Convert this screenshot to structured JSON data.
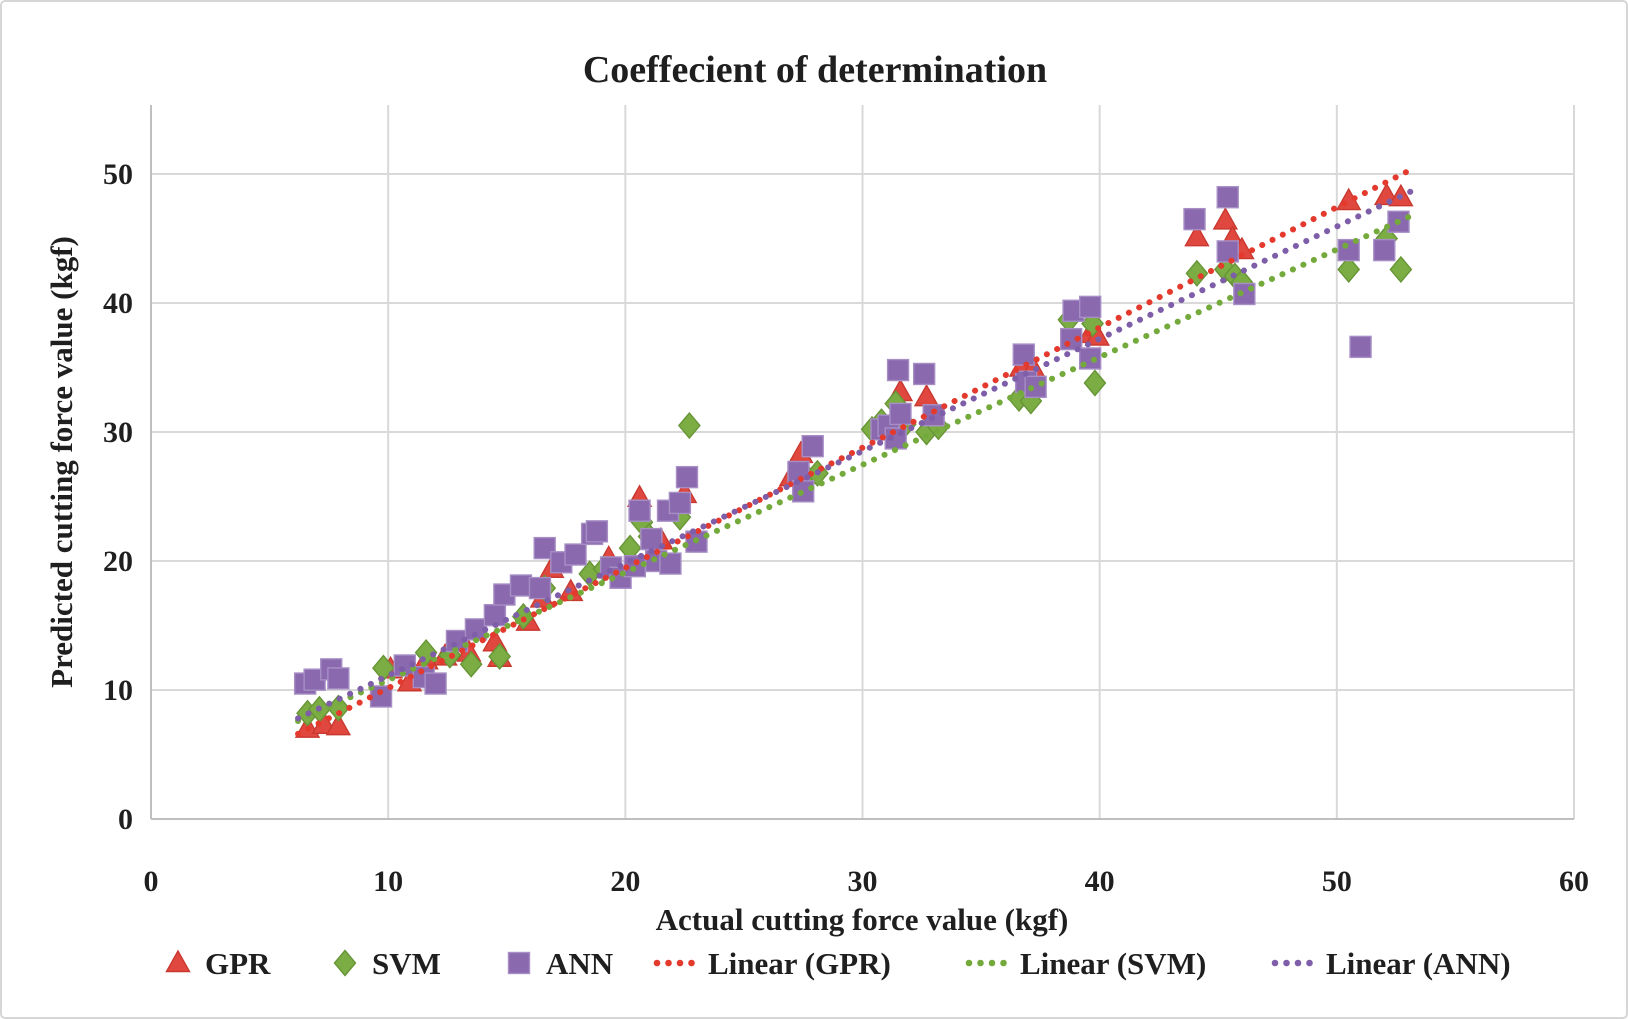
{
  "figure": {
    "background": "#ffffff",
    "border_color": "#d6d6d6"
  },
  "chart_data": {
    "type": "scatter",
    "title": "Coeffecient of determination",
    "xlabel": "Actual cutting force value (kgf)",
    "ylabel": "Predicted cutting force value (kgf)",
    "xlim": [
      0,
      60
    ],
    "ylim": [
      0,
      55
    ],
    "x_ticks": [
      0,
      10,
      20,
      30,
      40,
      50,
      60
    ],
    "y_ticks": [
      0,
      10,
      20,
      30,
      40,
      50
    ],
    "grid": true,
    "legend_position": "bottom",
    "colors": {
      "grid": "#d9d9d9",
      "axis": "#bfbfbf",
      "text": "#1f1f1f"
    },
    "series": [
      {
        "name": "GPR",
        "marker": "triangle",
        "color": "#e0483f",
        "stroke": "#c9382f",
        "points": [
          [
            6.6,
            7.0
          ],
          [
            7.3,
            7.3
          ],
          [
            7.9,
            7.2
          ],
          [
            10.1,
            11.6
          ],
          [
            10.9,
            10.6
          ],
          [
            11.6,
            12.3
          ],
          [
            12.4,
            12.6
          ],
          [
            13.4,
            12.9
          ],
          [
            14.5,
            13.7
          ],
          [
            14.7,
            12.5
          ],
          [
            15.9,
            15.3
          ],
          [
            16.5,
            17.1
          ],
          [
            16.9,
            19.4
          ],
          [
            17.7,
            17.6
          ],
          [
            19.3,
            20.2
          ],
          [
            20.6,
            24.9
          ],
          [
            21.5,
            21.6
          ],
          [
            22.5,
            25.2
          ],
          [
            27.0,
            26.5
          ],
          [
            27.4,
            28.3
          ],
          [
            30.9,
            30.6
          ],
          [
            31.6,
            33.1
          ],
          [
            32.7,
            32.7
          ],
          [
            36.7,
            35.0
          ],
          [
            37.2,
            34.9
          ],
          [
            39.6,
            37.6
          ],
          [
            39.9,
            37.4
          ],
          [
            44.1,
            45.1
          ],
          [
            45.3,
            46.4
          ],
          [
            45.6,
            45.0
          ],
          [
            46.0,
            44.1
          ],
          [
            50.5,
            47.9
          ],
          [
            52.1,
            48.3
          ],
          [
            52.7,
            48.2
          ]
        ]
      },
      {
        "name": "SVM",
        "marker": "diamond",
        "color": "#7bad44",
        "stroke": "#679536",
        "points": [
          [
            6.6,
            8.2
          ],
          [
            7.1,
            8.5
          ],
          [
            7.9,
            8.6
          ],
          [
            9.8,
            11.7
          ],
          [
            11.6,
            12.9
          ],
          [
            12.6,
            12.7
          ],
          [
            13.5,
            12.0
          ],
          [
            14.7,
            12.6
          ],
          [
            15.7,
            15.7
          ],
          [
            16.6,
            17.9
          ],
          [
            18.5,
            19.0
          ],
          [
            19.1,
            19.4
          ],
          [
            20.2,
            21.0
          ],
          [
            20.7,
            23.0
          ],
          [
            21.0,
            21.9
          ],
          [
            22.3,
            23.4
          ],
          [
            22.7,
            30.5
          ],
          [
            27.7,
            26.4
          ],
          [
            28.1,
            26.8
          ],
          [
            30.4,
            30.2
          ],
          [
            30.8,
            30.8
          ],
          [
            31.4,
            32.2
          ],
          [
            31.8,
            30.6
          ],
          [
            32.7,
            30.0
          ],
          [
            33.2,
            30.4
          ],
          [
            36.6,
            32.6
          ],
          [
            37.1,
            32.4
          ],
          [
            38.7,
            38.7
          ],
          [
            39.7,
            38.4
          ],
          [
            39.8,
            33.8
          ],
          [
            44.1,
            42.3
          ],
          [
            45.3,
            42.6
          ],
          [
            45.7,
            42.1
          ],
          [
            46.0,
            41.6
          ],
          [
            50.5,
            42.6
          ],
          [
            52.1,
            45.0
          ],
          [
            52.7,
            42.6
          ]
        ]
      },
      {
        "name": "ANN",
        "marker": "square",
        "color": "#8a69ae",
        "stroke": "#a78fc6",
        "points": [
          [
            6.5,
            10.5
          ],
          [
            6.9,
            10.8
          ],
          [
            7.6,
            11.6
          ],
          [
            7.9,
            10.9
          ],
          [
            9.7,
            9.5
          ],
          [
            10.7,
            11.9
          ],
          [
            11.5,
            11.0
          ],
          [
            12.0,
            10.5
          ],
          [
            12.9,
            13.8
          ],
          [
            13.7,
            14.7
          ],
          [
            14.5,
            15.8
          ],
          [
            14.9,
            17.4
          ],
          [
            15.6,
            18.1
          ],
          [
            16.4,
            17.9
          ],
          [
            16.6,
            21.0
          ],
          [
            17.3,
            19.9
          ],
          [
            17.9,
            20.5
          ],
          [
            18.6,
            22.1
          ],
          [
            18.8,
            22.3
          ],
          [
            19.4,
            19.5
          ],
          [
            19.8,
            18.7
          ],
          [
            20.4,
            19.6
          ],
          [
            20.6,
            23.9
          ],
          [
            21.1,
            21.7
          ],
          [
            21.3,
            20.0
          ],
          [
            21.9,
            19.8
          ],
          [
            21.8,
            23.9
          ],
          [
            22.3,
            24.5
          ],
          [
            22.6,
            26.5
          ],
          [
            23.0,
            21.5
          ],
          [
            27.3,
            26.9
          ],
          [
            27.5,
            25.4
          ],
          [
            27.9,
            28.9
          ],
          [
            30.8,
            30.2
          ],
          [
            31.1,
            30.5
          ],
          [
            31.4,
            29.5
          ],
          [
            31.5,
            34.8
          ],
          [
            31.6,
            31.4
          ],
          [
            32.6,
            34.5
          ],
          [
            33.0,
            31.3
          ],
          [
            36.8,
            36.0
          ],
          [
            36.9,
            33.9
          ],
          [
            37.3,
            33.5
          ],
          [
            38.8,
            37.2
          ],
          [
            38.9,
            39.4
          ],
          [
            39.6,
            39.7
          ],
          [
            39.6,
            35.7
          ],
          [
            44.0,
            46.5
          ],
          [
            45.4,
            48.2
          ],
          [
            45.4,
            44.0
          ],
          [
            46.1,
            40.7
          ],
          [
            50.5,
            44.1
          ],
          [
            51.0,
            36.6
          ],
          [
            52.0,
            44.1
          ],
          [
            52.6,
            46.3
          ]
        ]
      }
    ],
    "trendlines": [
      {
        "name": "Linear (GPR)",
        "color": "#e43a2e",
        "x1": 6.2,
        "y1": 6.6,
        "x2": 53.3,
        "y2": 50.5
      },
      {
        "name": "Linear (SVM)",
        "color": "#74aa3c",
        "x1": 6.2,
        "y1": 7.6,
        "x2": 53.3,
        "y2": 46.9
      },
      {
        "name": "Linear (ANN)",
        "color": "#7e5ea9",
        "x1": 6.2,
        "y1": 7.8,
        "x2": 53.3,
        "y2": 48.8
      }
    ]
  }
}
